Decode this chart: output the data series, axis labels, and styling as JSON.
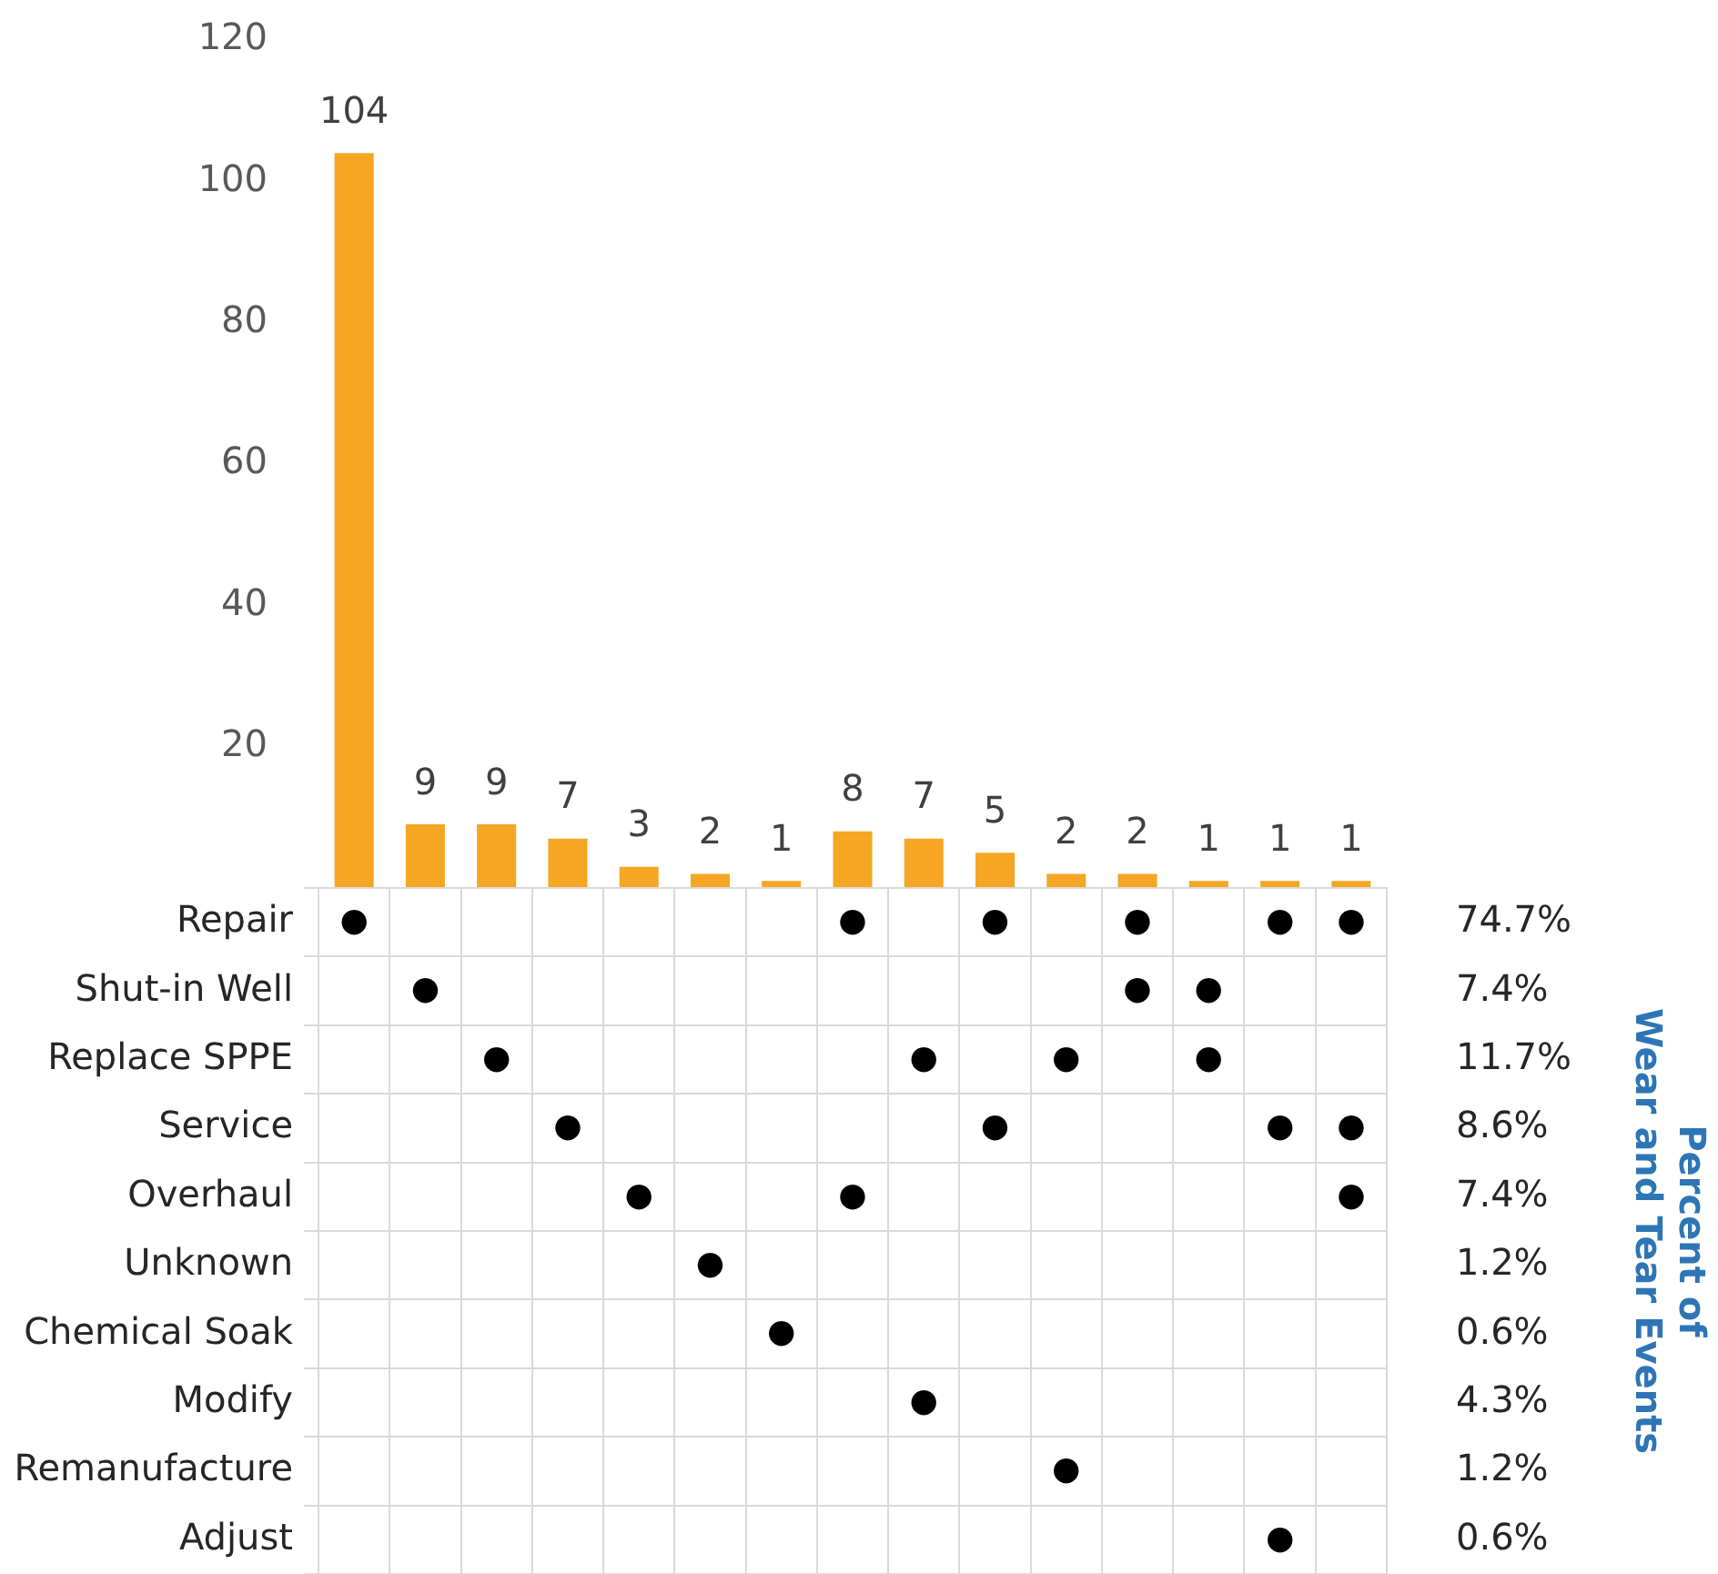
{
  "chart_data": [
    {
      "type": "bar",
      "categories": [
        null,
        null,
        null,
        null,
        null,
        null,
        null,
        null,
        null,
        null,
        null,
        null,
        null,
        null,
        null
      ],
      "values": [
        104,
        9,
        9,
        7,
        3,
        2,
        1,
        8,
        7,
        5,
        2,
        2,
        1,
        1,
        1
      ],
      "color": "#f5a623",
      "data_labels": true,
      "ylim": [
        0,
        120
      ],
      "yticks": [
        20,
        40,
        60,
        80,
        100,
        120
      ],
      "grid": false,
      "legend": false
    },
    {
      "type": "heatmap",
      "categories": [
        null,
        null,
        null,
        null,
        null,
        null,
        null,
        null,
        null,
        null,
        null,
        null,
        null,
        null,
        null
      ],
      "y_categories": [
        "Repair",
        "Shut-in Well",
        "Replace SPPE",
        "Service",
        "Overhaul",
        "Unknown",
        "Chemical Soak",
        "Modify",
        "Remanufacture",
        "Adjust"
      ],
      "y2_categories": [
        "74.7%",
        "7.4%",
        "11.7%",
        "8.6%",
        "7.4%",
        "1.2%",
        "0.6%",
        "4.3%",
        "1.2%",
        "0.6%"
      ],
      "y2label": "Percent of\nWear and Tear Events",
      "cells": [
        [
          null,
          null,
          null,
          null,
          null,
          null,
          null,
          null,
          null,
          null,
          null,
          null,
          null,
          null,
          null
        ],
        [
          null,
          null,
          null,
          null,
          null,
          null,
          null,
          null,
          null,
          null,
          null,
          null,
          null,
          null,
          null
        ],
        [
          null,
          null,
          null,
          null,
          null,
          null,
          null,
          null,
          null,
          null,
          null,
          null,
          null,
          null,
          null
        ],
        [
          null,
          null,
          null,
          null,
          null,
          null,
          null,
          null,
          null,
          null,
          null,
          null,
          null,
          null,
          null
        ],
        [
          null,
          null,
          null,
          null,
          null,
          null,
          null,
          null,
          null,
          null,
          null,
          null,
          null,
          null,
          null
        ],
        [
          null,
          null,
          null,
          null,
          null,
          null,
          null,
          null,
          null,
          null,
          null,
          null,
          null,
          null,
          null
        ],
        [
          null,
          null,
          null,
          null,
          null,
          null,
          null,
          null,
          null,
          null,
          null,
          null,
          null,
          null,
          null
        ],
        [
          null,
          null,
          null,
          null,
          null,
          null,
          null,
          null,
          null,
          null,
          null,
          null,
          null,
          null,
          null
        ],
        [
          null,
          null,
          null,
          null,
          null,
          null,
          null,
          null,
          null,
          null,
          null,
          null,
          null,
          null,
          null
        ],
        [
          null,
          null,
          null,
          null,
          null,
          null,
          null,
          null,
          null,
          null,
          null,
          null,
          null,
          null,
          null
        ]
      ],
      "cell_labels": [
        [
          "●",
          null,
          null,
          null,
          null,
          null,
          null,
          "●",
          null,
          "●",
          null,
          "●",
          null,
          "●",
          "●"
        ],
        [
          null,
          "●",
          null,
          null,
          null,
          null,
          null,
          null,
          null,
          null,
          null,
          "●",
          "●",
          null,
          null
        ],
        [
          null,
          null,
          "●",
          null,
          null,
          null,
          null,
          null,
          "●",
          null,
          "●",
          null,
          "●",
          null,
          null
        ],
        [
          null,
          null,
          null,
          "●",
          null,
          null,
          null,
          null,
          null,
          "●",
          null,
          null,
          null,
          "●",
          "●"
        ],
        [
          null,
          null,
          null,
          null,
          "●",
          null,
          null,
          "●",
          null,
          null,
          null,
          null,
          null,
          null,
          "●"
        ],
        [
          null,
          null,
          null,
          null,
          null,
          "●",
          null,
          null,
          null,
          null,
          null,
          null,
          null,
          null,
          null
        ],
        [
          null,
          null,
          null,
          null,
          null,
          null,
          "●",
          null,
          null,
          null,
          null,
          null,
          null,
          null,
          null
        ],
        [
          null,
          null,
          null,
          null,
          null,
          null,
          null,
          null,
          "●",
          null,
          null,
          null,
          null,
          null,
          null
        ],
        [
          null,
          null,
          null,
          null,
          null,
          null,
          null,
          null,
          null,
          null,
          "●",
          null,
          null,
          null,
          null
        ],
        [
          null,
          null,
          null,
          null,
          null,
          null,
          null,
          null,
          null,
          null,
          null,
          null,
          null,
          "●",
          null
        ]
      ]
    }
  ]
}
